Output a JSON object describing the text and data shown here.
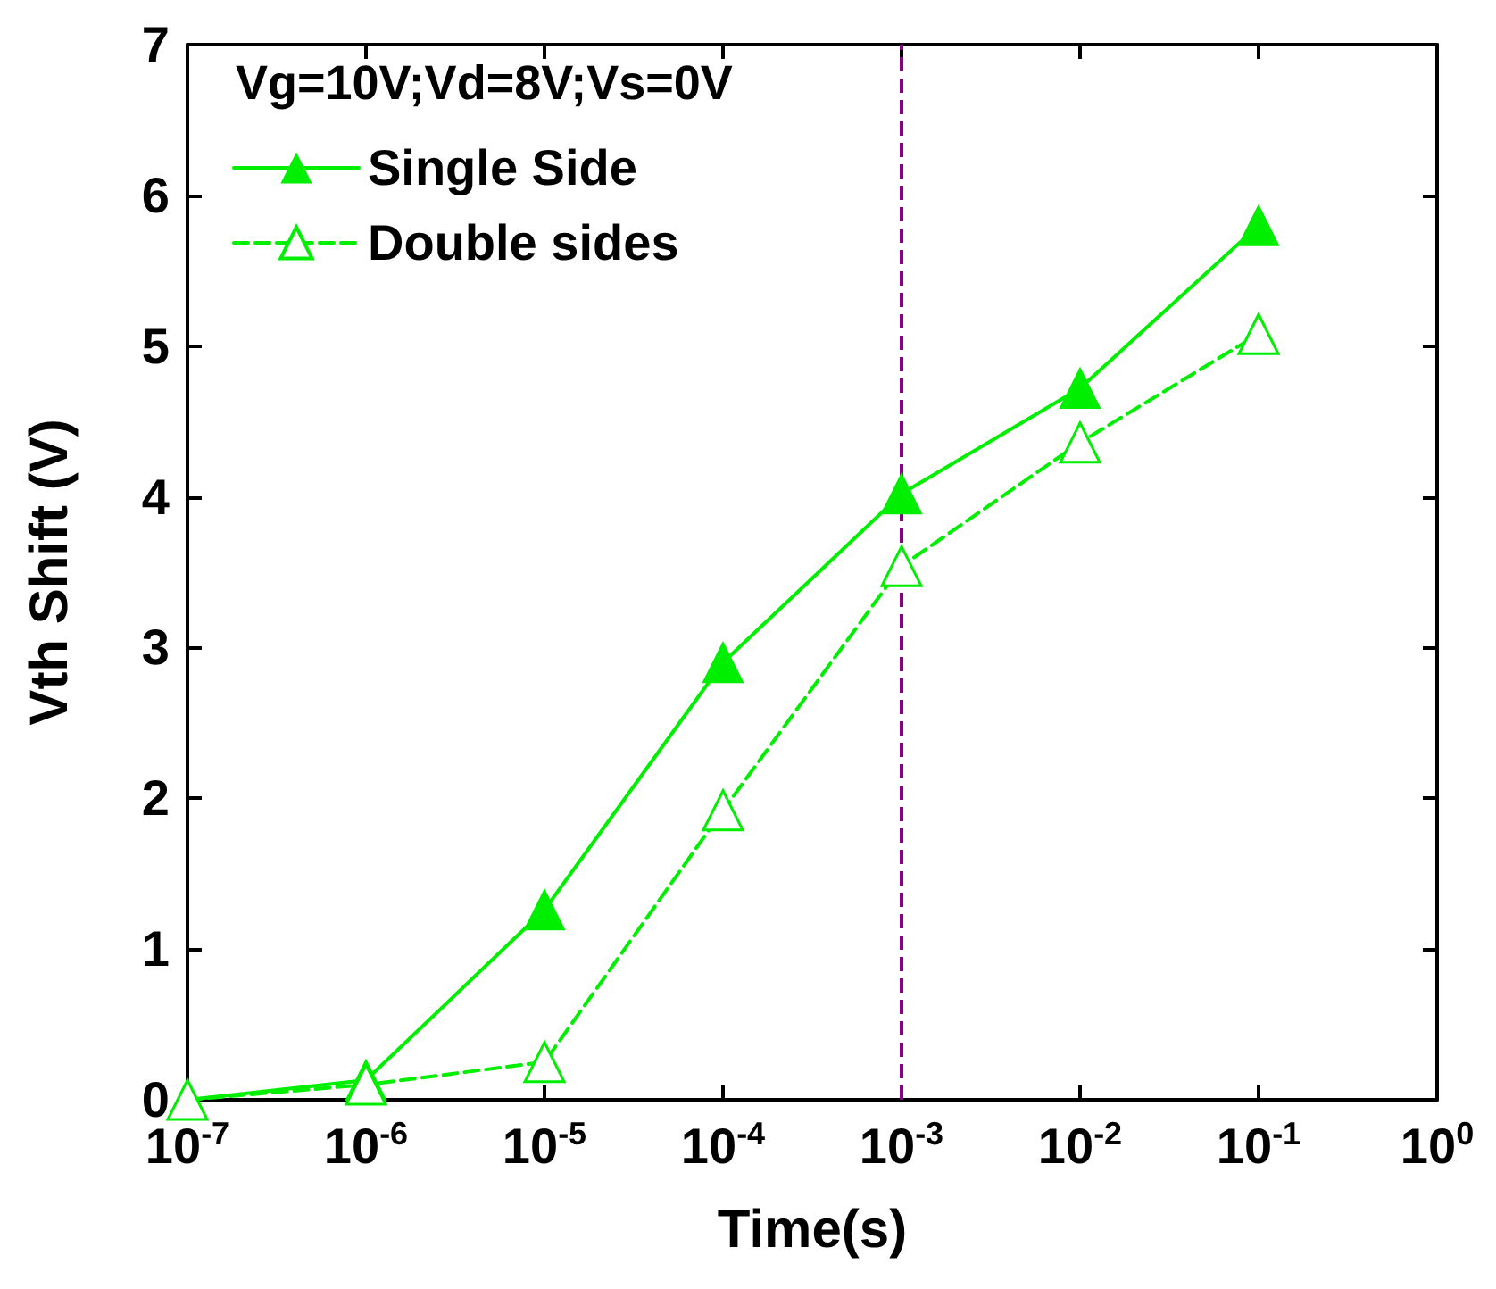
{
  "chart_data": {
    "type": "line",
    "xlabel": "Time(s)",
    "ylabel": "Vth Shift (V)",
    "annotations": [
      "Vg=10V;Vd=8V;Vs=0V"
    ],
    "x": [
      1e-07,
      1e-06,
      1e-05,
      0.0001,
      0.001,
      0.01,
      0.1
    ],
    "series": [
      {
        "name": "Single Side",
        "color": "#00ee00",
        "line_style": "solid",
        "values": [
          0,
          0.13,
          1.26,
          2.9,
          4.02,
          4.72,
          5.8
        ]
      },
      {
        "name": "Double sides",
        "color": "#00ee00",
        "line_style": "dashed",
        "values": [
          0,
          0.1,
          0.25,
          1.92,
          3.54,
          4.36,
          5.08
        ]
      }
    ],
    "log": "x",
    "marker": "triangle",
    "grid": false,
    "legend": "top left",
    "xlim": [
      1e-07,
      1
    ],
    "xticks": [
      {
        "value": 1e-07,
        "label": "10$^{-7}$"
      },
      {
        "value": 1e-06,
        "label": "10$^{-6}$"
      },
      {
        "value": 1e-05,
        "label": "10$^{-5}$"
      },
      {
        "value": 0.0001,
        "label": "10$^{-4}$"
      },
      {
        "value": 0.001,
        "label": "10$^{-3}$"
      },
      {
        "value": 0.01,
        "label": "10$^{-2}$"
      },
      {
        "value": 0.1,
        "label": "10$^{-1}$"
      },
      {
        "value": 1,
        "label": "10$^{0}$"
      }
    ],
    "ylim": [
      0,
      7
    ],
    "yticks": [
      0,
      1,
      2,
      3,
      4,
      5,
      6,
      7
    ],
    "ref_lines": [
      {
        "axis": "x",
        "value": 0.001,
        "label": null,
        "color": "#8b008b",
        "line_style": "dashed"
      }
    ]
  }
}
